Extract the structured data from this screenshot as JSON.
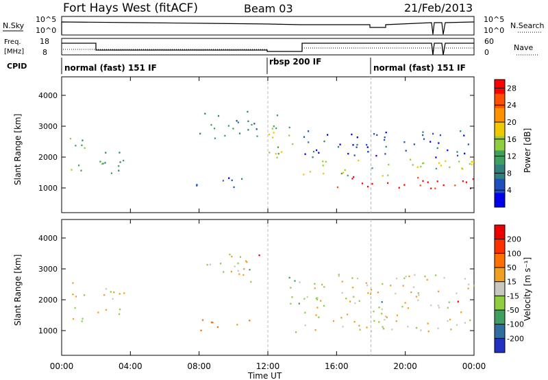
{
  "header": {
    "station": "Fort Hays West (fitACF)",
    "beam": "Beam 03",
    "date": "21/Feb/2013"
  },
  "params": {
    "nsky_label": "N.Sky",
    "nsky_ticks": [
      "10^5",
      "10^0"
    ],
    "nsearch_label": "N.Search",
    "nsearch_ticks": [
      "10^5",
      "10^0"
    ],
    "freq_label_1": "Freq.",
    "freq_label_2": "[MHz]",
    "freq_ticks": [
      "18",
      "8"
    ],
    "nave_label": "Nave",
    "nave_ticks": [
      "60",
      "0"
    ],
    "cpid_label": "CPID"
  },
  "cpid_segments": [
    {
      "start_hour": 0.0,
      "label": "normal (fast) 151 IF"
    },
    {
      "start_hour": 12.0,
      "label": "rbsp 200 IF"
    },
    {
      "start_hour": 18.0,
      "label": "normal (fast) 151 IF"
    }
  ],
  "chart_data": [
    {
      "type": "heatmap",
      "panel": "power",
      "xlabel": "Time UT",
      "ylabel": "Slant Range [km]",
      "xlim_hours": [
        0,
        24
      ],
      "ylim": [
        200,
        4600
      ],
      "x_ticks": [
        "00:00",
        "04:00",
        "08:00",
        "12:00",
        "16:00",
        "20:00",
        "00:00"
      ],
      "y_ticks": [
        1000,
        2000,
        3000,
        4000
      ],
      "colorbar": {
        "label": "Power [dB]",
        "ticks": [
          4,
          8,
          12,
          16,
          20,
          24,
          28
        ],
        "range": [
          0,
          30
        ],
        "colors": [
          "#0000ee",
          "#1f4fbf",
          "#2f7f7f",
          "#3f9f5f",
          "#8fcf3f",
          "#f0c800",
          "#ff9000",
          "#ff5000",
          "#ff0000"
        ]
      },
      "regions": [
        {
          "t0": 0.3,
          "t1": 1.3,
          "r_lo": 1300,
          "r_hi": 2800,
          "p": 12
        },
        {
          "t0": 1.8,
          "t1": 3.6,
          "r_lo": 1400,
          "r_hi": 2500,
          "p": 10
        },
        {
          "t0": 8.0,
          "t1": 11.5,
          "r_lo": 2500,
          "r_hi": 3500,
          "p": 10
        },
        {
          "t0": 7.8,
          "t1": 11.0,
          "r_lo": 1000,
          "r_hi": 1400,
          "p": 4
        },
        {
          "t0": 11.8,
          "t1": 13.8,
          "r_lo": 2000,
          "r_hi": 3400,
          "p": 14
        },
        {
          "t0": 14.0,
          "t1": 24.0,
          "r_lo": 1000,
          "r_hi": 1400,
          "p": 28
        },
        {
          "t0": 14.0,
          "t1": 24.0,
          "r_lo": 1400,
          "r_hi": 2000,
          "p": 16
        },
        {
          "t0": 14.0,
          "t1": 24.0,
          "r_lo": 2000,
          "r_hi": 2900,
          "p": 5
        }
      ]
    },
    {
      "type": "heatmap",
      "panel": "velocity",
      "xlabel": "Time UT",
      "ylabel": "Slant Range [km]",
      "xlim_hours": [
        0,
        24
      ],
      "ylim": [
        200,
        4600
      ],
      "x_ticks": [
        "00:00",
        "04:00",
        "08:00",
        "12:00",
        "16:00",
        "20:00",
        "00:00"
      ],
      "y_ticks": [
        1000,
        2000,
        3000,
        4000
      ],
      "colorbar": {
        "label": "Velocity [m s⁻¹]",
        "ticks": [
          "200",
          "100",
          "50",
          "15",
          "-15",
          "-50",
          "-100",
          "-200"
        ],
        "colors": [
          "#2030c0",
          "#2f6f9f",
          "#3f9f5f",
          "#8fcf3f",
          "#c8c8c0",
          "#f0a020",
          "#ff7000",
          "#ff3000",
          "#ee0000"
        ]
      },
      "regions": [
        {
          "t0": 0.3,
          "t1": 1.3,
          "r_lo": 1300,
          "r_hi": 2800,
          "v": 0
        },
        {
          "t0": 1.8,
          "t1": 3.6,
          "r_lo": 1400,
          "r_hi": 2500,
          "v": 0
        },
        {
          "t0": 8.0,
          "t1": 11.5,
          "r_lo": 2500,
          "r_hi": 3500,
          "v": 0
        },
        {
          "t0": 7.8,
          "t1": 11.0,
          "r_lo": 1000,
          "r_hi": 1400,
          "v": -40
        },
        {
          "t0": 13.2,
          "t1": 14.0,
          "r_lo": 900,
          "r_hi": 2800,
          "v": 30
        },
        {
          "t0": 14.0,
          "t1": 24.0,
          "r_lo": 1000,
          "r_hi": 2900,
          "v": 0
        }
      ]
    }
  ]
}
